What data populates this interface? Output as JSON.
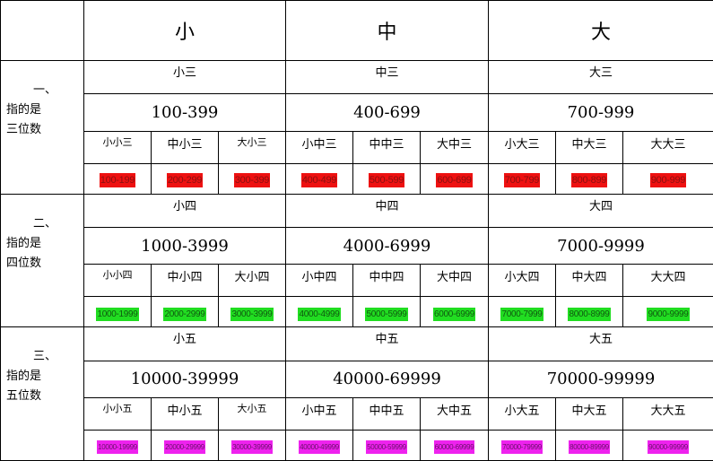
{
  "header": {
    "columns": [
      "小",
      "中",
      "大"
    ]
  },
  "sections": [
    {
      "label_num": "一、",
      "label_line1": "指的是",
      "label_line2": "三位数",
      "names": [
        "小三",
        "中三",
        "大三"
      ],
      "ranges": [
        "100-399",
        "400-699",
        "700-999"
      ],
      "subnames": [
        "小小三",
        "中小三",
        "大小三",
        "小中三",
        "中中三",
        "大中三",
        "小大三",
        "中大三",
        "大大三"
      ],
      "subranges": [
        "100-199",
        "200-299",
        "300-399",
        "400-499",
        "500-599",
        "600-699",
        "700-799",
        "800-899",
        "900-999"
      ],
      "highlight_color": "#ee1111"
    },
    {
      "label_num": "二、",
      "label_line1": "指的是",
      "label_line2": "四位数",
      "names": [
        "小四",
        "中四",
        "大四"
      ],
      "ranges": [
        "1000-3999",
        "4000-6999",
        "7000-9999"
      ],
      "subnames": [
        "小小四",
        "中小四",
        "大小四",
        "小中四",
        "中中四",
        "大中四",
        "小大四",
        "中大四",
        "大大四"
      ],
      "subranges": [
        "1000-1999",
        "2000-2999",
        "3000-3999",
        "4000-4999",
        "5000-5999",
        "6000-6999",
        "7000-7999",
        "8000-8999",
        "9000-9999"
      ],
      "highlight_color": "#21dd21"
    },
    {
      "label_num": "三、",
      "label_line1": "指的是",
      "label_line2": "五位数",
      "names": [
        "小五",
        "中五",
        "大五"
      ],
      "ranges": [
        "10000-39999",
        "40000-69999",
        "70000-99999"
      ],
      "subnames": [
        "小小五",
        "中小五",
        "大小五",
        "小中五",
        "中中五",
        "大中五",
        "小大五",
        "中大五",
        "大大五"
      ],
      "subranges": [
        "10000-19999",
        "20000-29999",
        "30000-39999",
        "40000-49999",
        "50000-59999",
        "60000-69999",
        "70000-79999",
        "80000-89999",
        "90000-99999"
      ],
      "highlight_color": "#ee22ee"
    }
  ]
}
